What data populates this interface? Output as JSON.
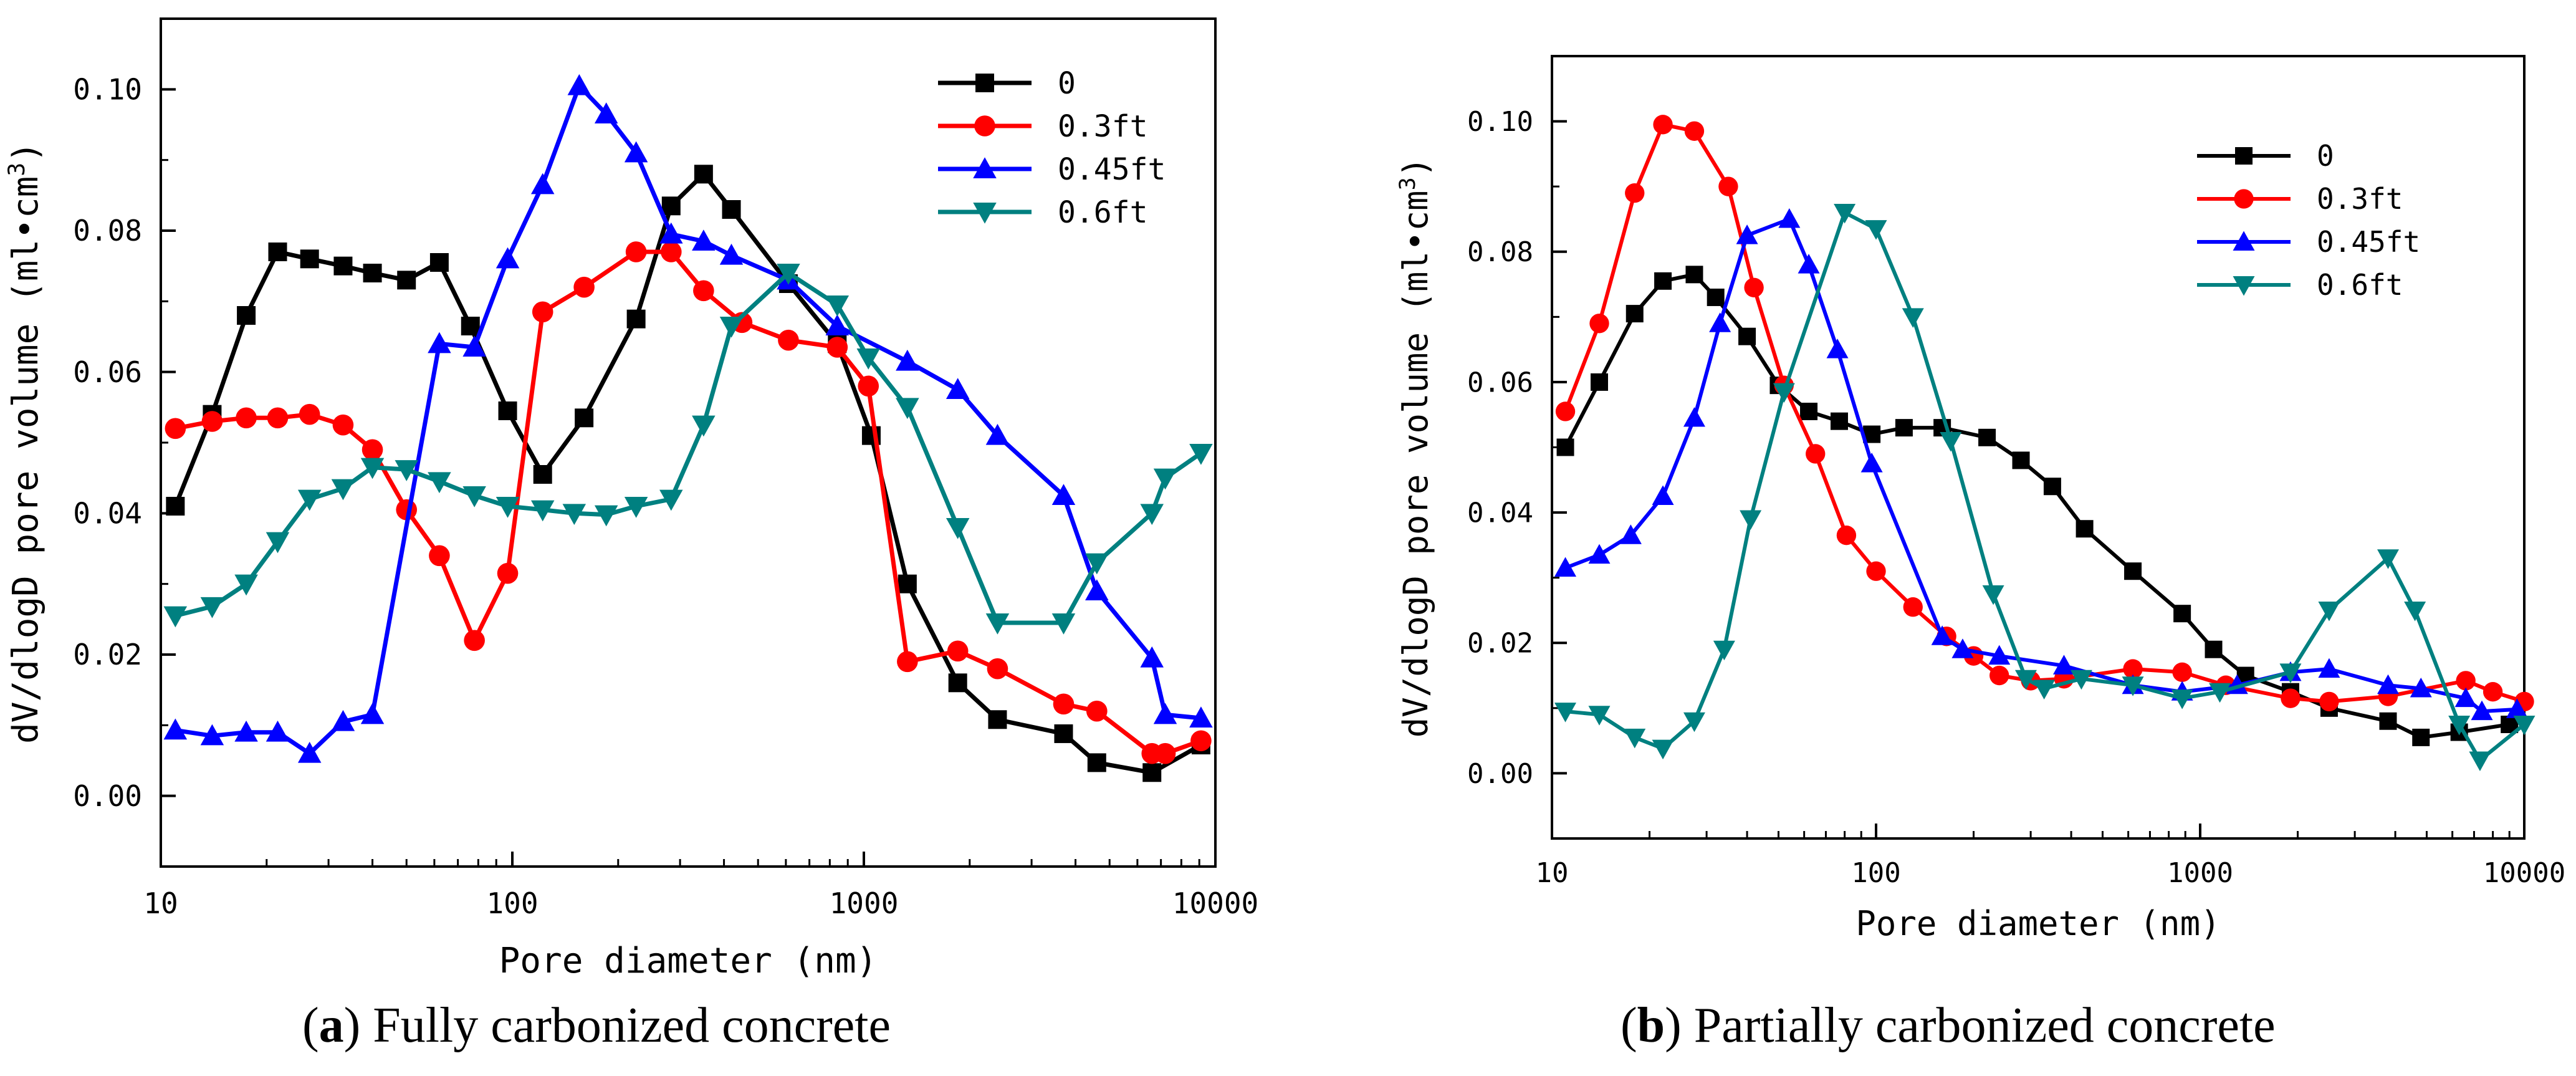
{
  "captions": [
    {
      "letter": "a",
      "open": "(",
      "close": ")",
      "text": " Fully carbonized concrete"
    },
    {
      "letter": "b",
      "open": "(",
      "close": ")",
      "text": " Partially carbonized concrete"
    }
  ],
  "chart_data": [
    {
      "type": "line",
      "panel": "a",
      "xlabel": "Pore diameter (nm)",
      "ylabel": "dV/dlogD pore volume (ml•cm",
      "ylabel_sup": "3",
      "ylabel_end": ")",
      "xscale": "log",
      "xlim": [
        10,
        10000
      ],
      "ylim": [
        -0.01,
        0.11
      ],
      "xticks": [
        10,
        100,
        1000,
        10000
      ],
      "xtick_labels": [
        "10",
        "100",
        "1000",
        "10000"
      ],
      "yticks": [
        0.0,
        0.02,
        0.04,
        0.06,
        0.08,
        0.1
      ],
      "ytick_labels": [
        "0.00",
        "0.02",
        "0.04",
        "0.06",
        "0.08",
        "0.10"
      ],
      "legend_position": "top-right",
      "series": [
        {
          "name": "0",
          "color": "#000000",
          "marker": "square",
          "x": [
            11,
            14,
            17.5,
            21.5,
            26.5,
            33,
            40,
            50,
            62,
            76,
            97,
            122,
            160,
            225,
            283,
            350,
            420,
            610,
            840,
            1050,
            1330,
            1850,
            2400,
            3700,
            4600,
            6600,
            9100
          ],
          "y": [
            0.041,
            0.054,
            0.068,
            0.077,
            0.076,
            0.075,
            0.074,
            0.073,
            0.0755,
            0.0665,
            0.0545,
            0.0455,
            0.0535,
            0.0675,
            0.0835,
            0.088,
            0.083,
            0.0725,
            0.064,
            0.051,
            0.03,
            0.016,
            0.0108,
            0.0088,
            0.0047,
            0.0033,
            0.0072
          ]
        },
        {
          "name": "0.3ft",
          "color": "#ff0000",
          "marker": "circle",
          "x": [
            11,
            14,
            17.5,
            21.5,
            26.5,
            33,
            40,
            50,
            62,
            78,
            97,
            122,
            160,
            225,
            283,
            350,
            450,
            610,
            840,
            1030,
            1330,
            1850,
            2400,
            3700,
            4600,
            6600,
            7200,
            9100
          ],
          "y": [
            0.052,
            0.053,
            0.0535,
            0.0535,
            0.054,
            0.0525,
            0.049,
            0.0405,
            0.034,
            0.022,
            0.0315,
            0.0685,
            0.072,
            0.077,
            0.077,
            0.0715,
            0.067,
            0.0645,
            0.0635,
            0.058,
            0.019,
            0.0205,
            0.018,
            0.013,
            0.012,
            0.006,
            0.006,
            0.0078
          ]
        },
        {
          "name": "0.45ft",
          "color": "#0000ff",
          "marker": "triangle-up",
          "x": [
            11,
            14,
            17.5,
            21.5,
            26.5,
            33,
            40,
            62,
            78,
            97,
            122,
            155,
            185,
            225,
            283,
            350,
            420,
            610,
            840,
            1330,
            1850,
            2400,
            3700,
            4600,
            6600,
            7200,
            9100
          ],
          "y": [
            0.0093,
            0.0085,
            0.009,
            0.009,
            0.006,
            0.0105,
            0.0115,
            0.064,
            0.0635,
            0.076,
            0.0865,
            0.1005,
            0.0965,
            0.091,
            0.0795,
            0.0785,
            0.0765,
            0.073,
            0.0665,
            0.0615,
            0.0575,
            0.051,
            0.0425,
            0.029,
            0.0195,
            0.0115,
            0.011
          ]
        },
        {
          "name": "0.6ft",
          "color": "#008080",
          "marker": "triangle-down",
          "x": [
            11,
            14,
            17.5,
            21.5,
            26.5,
            33,
            40,
            50,
            62,
            78,
            97,
            122,
            150,
            185,
            225,
            283,
            350,
            420,
            610,
            840,
            1030,
            1330,
            1850,
            2400,
            3700,
            4600,
            6600,
            7200,
            9100
          ],
          "y": [
            0.0255,
            0.0268,
            0.03,
            0.036,
            0.042,
            0.0435,
            0.0465,
            0.0462,
            0.0445,
            0.0425,
            0.041,
            0.0405,
            0.04,
            0.0398,
            0.041,
            0.042,
            0.0525,
            0.0665,
            0.074,
            0.0695,
            0.062,
            0.055,
            0.038,
            0.0245,
            0.0245,
            0.033,
            0.04,
            0.045,
            0.0485
          ]
        }
      ]
    },
    {
      "type": "line",
      "panel": "b",
      "xlabel": "Pore diameter (nm)",
      "ylabel": "dV/dlogD pore volume (ml•cm",
      "ylabel_sup": "3",
      "ylabel_end": ")",
      "xscale": "log",
      "xlim": [
        10,
        10000
      ],
      "ylim": [
        -0.01,
        0.11
      ],
      "xticks": [
        10,
        100,
        1000,
        10000
      ],
      "xtick_labels": [
        "10",
        "100",
        "1000",
        "10000"
      ],
      "yticks": [
        0.0,
        0.02,
        0.04,
        0.06,
        0.08,
        0.1
      ],
      "ytick_labels": [
        "0.00",
        "0.02",
        "0.04",
        "0.06",
        "0.08",
        "0.10"
      ],
      "legend_position": "top-right",
      "series": [
        {
          "name": "0",
          "color": "#000000",
          "marker": "square",
          "x": [
            11,
            14,
            18,
            22,
            27.5,
            32,
            40,
            50,
            62,
            77,
            97,
            122,
            160,
            220,
            280,
            350,
            440,
            620,
            880,
            1100,
            1380,
            1900,
            2500,
            3800,
            4800,
            6300,
            9000
          ],
          "y": [
            0.05,
            0.06,
            0.0705,
            0.0755,
            0.0765,
            0.073,
            0.067,
            0.0595,
            0.0555,
            0.054,
            0.052,
            0.053,
            0.053,
            0.0515,
            0.048,
            0.044,
            0.0375,
            0.031,
            0.0245,
            0.019,
            0.015,
            0.0125,
            0.01,
            0.008,
            0.0055,
            0.0063,
            0.0075
          ]
        },
        {
          "name": "0.3ft",
          "color": "#ff0000",
          "marker": "circle",
          "x": [
            11,
            14,
            18,
            22,
            27.5,
            35,
            42,
            52,
            65,
            81,
            100,
            130,
            165,
            200,
            240,
            300,
            380,
            620,
            880,
            1200,
            1900,
            2500,
            3800,
            6600,
            8000,
            10000
          ],
          "y": [
            0.0555,
            0.069,
            0.089,
            0.0995,
            0.0985,
            0.09,
            0.0745,
            0.0595,
            0.049,
            0.0365,
            0.031,
            0.0255,
            0.021,
            0.018,
            0.015,
            0.0142,
            0.0145,
            0.016,
            0.0155,
            0.0135,
            0.0115,
            0.011,
            0.0118,
            0.0142,
            0.0125,
            0.011
          ]
        },
        {
          "name": "0.45ft",
          "color": "#0000ff",
          "marker": "triangle-up",
          "x": [
            11,
            14,
            17.5,
            22,
            27.5,
            33,
            40,
            54,
            62,
            76,
            97,
            160,
            185,
            240,
            380,
            620,
            880,
            1300,
            1900,
            2500,
            3800,
            4800,
            6600,
            7400,
            9500
          ],
          "y": [
            0.0315,
            0.0335,
            0.0365,
            0.0425,
            0.0545,
            0.069,
            0.0825,
            0.085,
            0.078,
            0.065,
            0.0475,
            0.021,
            0.019,
            0.018,
            0.0165,
            0.0135,
            0.0125,
            0.0135,
            0.0155,
            0.016,
            0.0135,
            0.013,
            0.0115,
            0.0095,
            0.0098
          ]
        },
        {
          "name": "0.6ft",
          "color": "#008080",
          "marker": "triangle-down",
          "x": [
            11,
            14,
            18,
            22,
            27.5,
            34,
            41,
            52,
            80,
            100,
            130,
            170,
            230,
            290,
            330,
            430,
            620,
            880,
            1150,
            1900,
            2500,
            3800,
            4600,
            6300,
            7300,
            10000
          ],
          "y": [
            0.0095,
            0.009,
            0.0055,
            0.0038,
            0.008,
            0.019,
            0.039,
            0.0585,
            0.086,
            0.0835,
            0.07,
            0.051,
            0.0275,
            0.0145,
            0.013,
            0.0145,
            0.0135,
            0.0115,
            0.0125,
            0.0155,
            0.025,
            0.033,
            0.025,
            0.0075,
            0.002,
            0.0075
          ]
        }
      ]
    }
  ]
}
